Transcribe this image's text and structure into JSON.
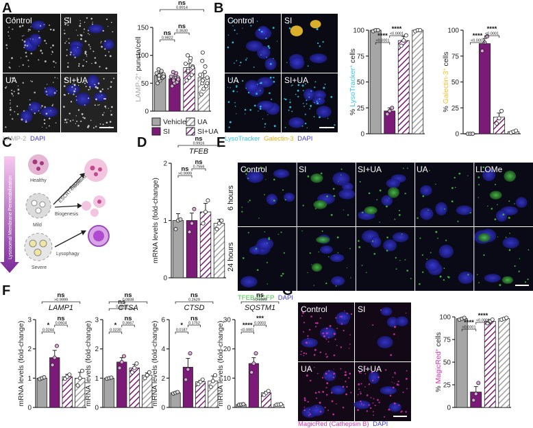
{
  "colors": {
    "vehicle": "#a6a6a6",
    "si": "#7b1a77",
    "ua_hatch": "#b3b3b3",
    "siua_hatch": "#7b1a77",
    "lysotracker": "#36c8e6",
    "galectin": "#f2c12e",
    "tfeb": "#3fbf3f",
    "magicred": "#d633b0",
    "dapi": "#3a3ad6",
    "lamp2_label": "#aaaaaa"
  },
  "panels": {
    "A": {
      "label": "A",
      "micro": [
        "Control",
        "SI",
        "UA",
        "SI+UA"
      ],
      "stain_lamp2": "LAMP-2",
      "stain_dapi": "DAPI",
      "legend": [
        "Vehicle",
        "UA",
        "SI",
        "SI+UA"
      ]
    },
    "B": {
      "label": "B",
      "micro": [
        "Control",
        "SI",
        "UA",
        "SI+UA"
      ],
      "stain_lyso": "LysoTracker",
      "stain_gal": "Galectin-3",
      "stain_dapi": "DAPI"
    },
    "C": {
      "label": "C",
      "axis_text": "Lysosomal Membrane Permeabilization",
      "healthy": "Healthy",
      "mild": "Mild",
      "severe": "Severe",
      "escrt": "ESCRT-mediated",
      "repair": "Repair",
      "biogenesis": "Biogenesis",
      "lysophagy": "Lysophagy"
    },
    "D": {
      "label": "D"
    },
    "E": {
      "label": "E",
      "cols": [
        "Control",
        "SI",
        "SI+UA",
        "UA",
        "LLOMe"
      ],
      "rows": [
        "6 hours",
        "24 hours"
      ],
      "stain_tfeb": "TFEB-EGFP",
      "stain_dapi": "DAPI"
    },
    "F": {
      "label": "F"
    },
    "G": {
      "label": "G",
      "micro": [
        "Control",
        "SI",
        "UA",
        "SI+UA"
      ],
      "stain_magic": "MagicRed (Cathepsin B)",
      "stain_dapi": "DAPI"
    }
  },
  "chart_data": [
    {
      "id": "A",
      "type": "bar",
      "categories": [
        "Vehicle",
        "SI",
        "SI+UA",
        "UA"
      ],
      "values": [
        64,
        58,
        78,
        60
      ],
      "errors": [
        4,
        5,
        7,
        9
      ],
      "ylabel_pre": "LAMP-2",
      "ylabel_sup": "+",
      "ylabel_post": " puncta/cell",
      "ylim": [
        0,
        150
      ],
      "yticks": [
        0,
        50,
        100,
        150
      ],
      "points": [
        [
          50,
          55,
          60,
          62,
          64,
          66,
          68,
          70,
          72,
          75,
          58,
          62
        ],
        [
          45,
          50,
          52,
          55,
          58,
          60,
          62,
          65,
          68,
          70,
          55,
          57
        ],
        [
          55,
          60,
          65,
          70,
          75,
          80,
          85,
          90,
          95,
          100,
          72,
          78
        ],
        [
          30,
          40,
          45,
          50,
          55,
          60,
          65,
          70,
          80,
          90,
          105,
          50
        ]
      ],
      "comparisons": [
        {
          "from": 0,
          "to": 1,
          "sig": "ns",
          "p": "0.9822"
        },
        {
          "from": 1,
          "to": 2,
          "sig": "ns",
          "p": "0.3630"
        },
        {
          "from": 0,
          "to": 3,
          "sig": "ns",
          "p": "0.8914"
        }
      ]
    },
    {
      "id": "B1",
      "type": "bar",
      "categories": [
        "Vehicle",
        "SI",
        "SI+UA",
        "UA"
      ],
      "values": [
        100,
        22,
        90,
        100
      ],
      "errors": [
        1,
        3,
        4,
        1
      ],
      "ylabel_pre": "% ",
      "ylabel_colored": "LysoTracker",
      "ylabel_sup": "+",
      "ylabel_post": " cells",
      "ylim": [
        0,
        100
      ],
      "yticks": [
        0,
        25,
        50,
        75,
        100
      ],
      "points": [
        [
          99,
          100,
          100
        ],
        [
          19,
          22,
          25
        ],
        [
          85,
          90,
          95
        ],
        [
          99,
          100,
          100
        ]
      ],
      "comparisons": [
        {
          "from": 0,
          "to": 1,
          "sig": "****",
          "p": "<0.0001"
        },
        {
          "from": 1,
          "to": 2,
          "sig": "****",
          "p": "<0.0001"
        }
      ]
    },
    {
      "id": "B2",
      "type": "bar",
      "categories": [
        "Vehicle",
        "SI",
        "SI+UA",
        "UA"
      ],
      "values": [
        0,
        87,
        16,
        2
      ],
      "errors": [
        0,
        5,
        4,
        1
      ],
      "ylabel_pre": "% ",
      "ylabel_colored": "Galectin-3",
      "ylabel_sup": "+",
      "ylabel_post": " cells",
      "ylim": [
        0,
        100
      ],
      "yticks": [
        0,
        25,
        50,
        75,
        100
      ],
      "points": [
        [
          0,
          0,
          0
        ],
        [
          80,
          88,
          94
        ],
        [
          10,
          15,
          22
        ],
        [
          1,
          2,
          3
        ]
      ],
      "comparisons": [
        {
          "from": 0,
          "to": 1,
          "sig": "****",
          "p": "<0.0001"
        },
        {
          "from": 1,
          "to": 2,
          "sig": "****",
          "p": "<0.0001"
        }
      ]
    },
    {
      "id": "D",
      "type": "bar",
      "title": "TFEB",
      "categories": [
        "Vehicle",
        "SI",
        "SI+UA",
        "UA"
      ],
      "values": [
        1.0,
        1.0,
        1.15,
        0.95
      ],
      "errors": [
        0.12,
        0.13,
        0.15,
        0.07
      ],
      "ylabel": "mRNA levels (fold-change)",
      "ylim": [
        0,
        2
      ],
      "yticks": [
        0,
        1,
        2
      ],
      "points": [
        [
          0.85,
          1.0,
          1.02
        ],
        [
          0.8,
          0.95,
          1.2
        ],
        [
          0.95,
          1.15,
          1.35
        ],
        [
          0.85,
          0.95,
          1.0
        ]
      ],
      "comparisons": [
        {
          "from": 0,
          "to": 1,
          "sig": "ns",
          "p": ">0.9999"
        },
        {
          "from": 1,
          "to": 2,
          "sig": "ns",
          "p": "0.7556"
        },
        {
          "from": 0,
          "to": 3,
          "sig": "ns",
          "p": "0.9916"
        }
      ]
    },
    {
      "id": "F1",
      "type": "bar",
      "title": "LAMP1",
      "categories": [
        "Vehicle",
        "SI",
        "SI+UA",
        "UA"
      ],
      "values": [
        1.0,
        1.7,
        1.05,
        1.0
      ],
      "errors": [
        0.04,
        0.25,
        0.08,
        0.2
      ],
      "ylabel": "mRNA levels (fold-change)",
      "ylim": [
        0,
        3
      ],
      "yticks": [
        0,
        1,
        2,
        3
      ],
      "points": [
        [
          0.97,
          1.0,
          1.03
        ],
        [
          1.45,
          1.7,
          2.1
        ],
        [
          0.98,
          1.05,
          1.12
        ],
        [
          0.75,
          1.0,
          1.25
        ]
      ],
      "comparisons": [
        {
          "from": 0,
          "to": 1,
          "sig": "*",
          "p": "0.0244"
        },
        {
          "from": 1,
          "to": 2,
          "sig": "ns",
          "p": "0.0604"
        },
        {
          "from": 0,
          "to": 3,
          "sig": "ns",
          "p": ">0.9999"
        }
      ]
    },
    {
      "id": "F2",
      "type": "bar",
      "title": "CTSA",
      "categories": [
        "Vehicle",
        "SI",
        "SI+UA",
        "UA"
      ],
      "values": [
        1.0,
        1.55,
        1.35,
        1.1
      ],
      "errors": [
        0.03,
        0.15,
        0.12,
        0.08
      ],
      "ylabel": "mRNA levels (fold-change)",
      "ylim": [
        0,
        3
      ],
      "yticks": [
        0,
        1,
        2,
        3
      ],
      "points": [
        [
          0.98,
          1.0,
          1.02
        ],
        [
          1.35,
          1.55,
          1.75
        ],
        [
          1.2,
          1.35,
          1.5
        ],
        [
          1.0,
          1.1,
          1.2
        ]
      ],
      "comparisons": [
        {
          "from": 0,
          "to": 1,
          "sig": "*",
          "p": "0.0230"
        },
        {
          "from": 1,
          "to": 2,
          "sig": "ns",
          "p": "0.3667"
        },
        {
          "from": 0,
          "to": 2,
          "sig": "ns",
          "p": "0.9890"
        },
        {
          "from": 0,
          "to": 3,
          "sig": "ns",
          "p": "0.0838"
        }
      ]
    },
    {
      "id": "F3",
      "type": "bar",
      "title": "CTSD",
      "categories": [
        "Vehicle",
        "SI",
        "SI+UA",
        "UA"
      ],
      "values": [
        1.0,
        2.75,
        1.75,
        1.8
      ],
      "errors": [
        0.05,
        0.6,
        0.1,
        0.35
      ],
      "ylabel": "mRNA levels (fold-change)",
      "ylim": [
        0,
        6
      ],
      "yticks": [
        0,
        2,
        4,
        6
      ],
      "points": [
        [
          0.95,
          1.0,
          1.05
        ],
        [
          1.9,
          2.6,
          3.7
        ],
        [
          1.6,
          1.75,
          1.9
        ],
        [
          1.4,
          1.8,
          2.2
        ]
      ],
      "comparisons": [
        {
          "from": 0,
          "to": 1,
          "sig": "*",
          "p": "0.0187"
        },
        {
          "from": 1,
          "to": 2,
          "sig": "ns",
          "p": "0.1752"
        },
        {
          "from": 0,
          "to": 3,
          "sig": "ns",
          "p": "0.2629"
        }
      ]
    },
    {
      "id": "F4",
      "type": "bar",
      "title": "SQSTM1",
      "categories": [
        "Vehicle",
        "SI",
        "SI+UA",
        "UA"
      ],
      "values": [
        1.0,
        15.0,
        5.0,
        1.0
      ],
      "errors": [
        0.05,
        2.0,
        0.5,
        0.1
      ],
      "ylabel": "mRNA levels (fold-change)",
      "ylim": [
        0,
        30
      ],
      "yticks": [
        0,
        10,
        20,
        30
      ],
      "points": [
        [
          0.9,
          1.0,
          1.1
        ],
        [
          12.0,
          15.0,
          18.5
        ],
        [
          4.3,
          5.0,
          5.6
        ],
        [
          0.9,
          1.0,
          1.1
        ]
      ],
      "comparisons": [
        {
          "from": 0,
          "to": 1,
          "sig": "****",
          "p": "<0.0001"
        },
        {
          "from": 1,
          "to": 2,
          "sig": "***",
          "p": "0.0003"
        },
        {
          "from": 0,
          "to": 3,
          "sig": "ns",
          "p": ">0.9999"
        }
      ]
    },
    {
      "id": "G",
      "type": "bar",
      "categories": [
        "Vehicle",
        "SI",
        "SI+UA",
        "UA"
      ],
      "values": [
        98,
        17,
        95,
        98
      ],
      "errors": [
        1,
        6,
        2,
        1
      ],
      "ylabel_pre": "% ",
      "ylabel_colored": "MagicRed",
      "ylabel_sup": "+",
      "ylabel_post": " cells",
      "ylim": [
        0,
        100
      ],
      "yticks": [
        0,
        25,
        50,
        75,
        100
      ],
      "points": [
        [
          97,
          98,
          99
        ],
        [
          8,
          15,
          27
        ],
        [
          93,
          95,
          97
        ],
        [
          97,
          98,
          99
        ]
      ],
      "comparisons": [
        {
          "from": 0,
          "to": 1,
          "sig": "****",
          "p": "<0.0001"
        },
        {
          "from": 1,
          "to": 2,
          "sig": "****",
          "p": "<0.0001"
        }
      ]
    }
  ]
}
